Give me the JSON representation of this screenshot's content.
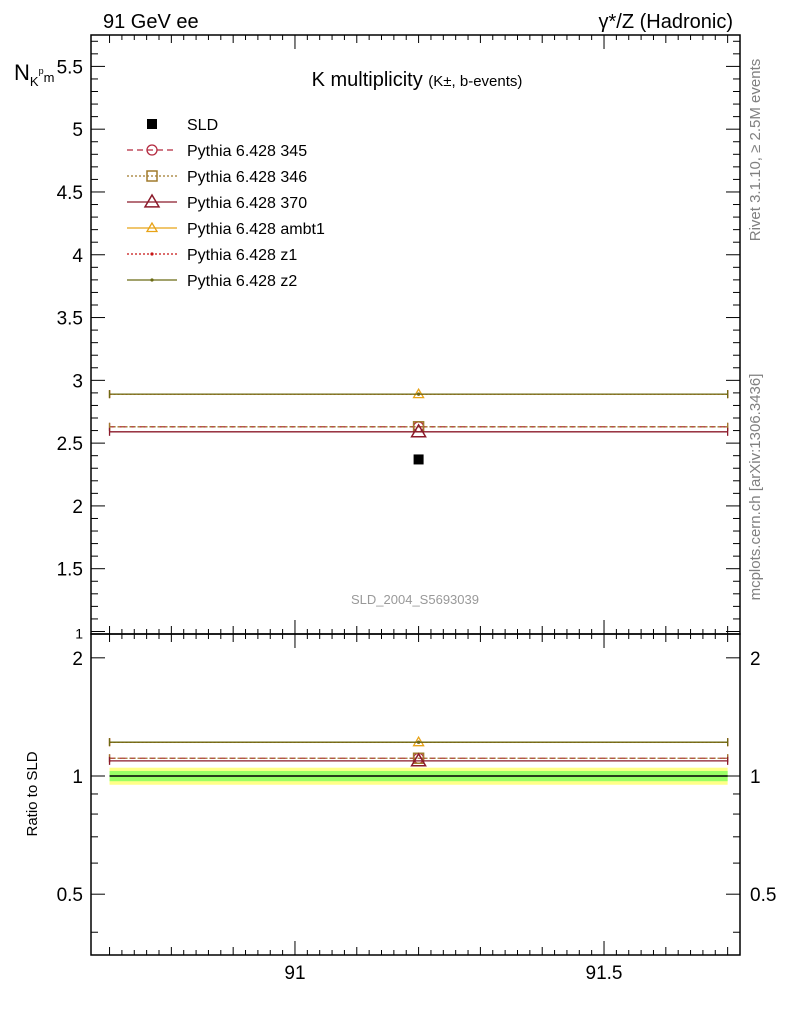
{
  "header": {
    "left": "91 GeV ee",
    "right": "γ*/Z (Hadronic)"
  },
  "side": {
    "rivet": "Rivet 3.1.10, ≥ 2.5M events",
    "mcplots": "mcplots.cern.ch [arXiv:1306.3436]"
  },
  "chart_data": {
    "type": "scatter",
    "title_main": "K multiplicity",
    "title_sub": "(K±, b-events)",
    "ylabel_main": "N",
    "ylabel_sub_1": "K",
    "ylabel_sub_2": "p",
    "ylabel_sub_3": "m",
    "ylabel_ratio": "Ratio to SLD",
    "watermark": "SLD_2004_S5693039",
    "xlim": [
      90.67,
      91.72
    ],
    "bin": [
      90.7,
      91.7
    ],
    "xcenter": 91.2,
    "xticks": [
      {
        "value": 91,
        "label": "91"
      },
      {
        "value": 91.5,
        "label": "91.5"
      }
    ],
    "ylim_main": [
      0.98,
      5.75
    ],
    "yticks_main": [
      {
        "value": 1,
        "label": "1"
      },
      {
        "value": 1.5,
        "label": "1.5"
      },
      {
        "value": 2,
        "label": "2"
      },
      {
        "value": 2.5,
        "label": "2.5"
      },
      {
        "value": 3,
        "label": "3"
      },
      {
        "value": 3.5,
        "label": "3.5"
      },
      {
        "value": 4,
        "label": "4"
      },
      {
        "value": 4.5,
        "label": "4.5"
      },
      {
        "value": 5,
        "label": "5"
      },
      {
        "value": 5.5,
        "label": "5.5"
      }
    ],
    "ylim_ratio": [
      0.35,
      2.3
    ],
    "yticks_ratio": [
      {
        "value": 0.5,
        "label": "0.5"
      },
      {
        "value": 1,
        "label": "1"
      },
      {
        "value": 2,
        "label": "2"
      }
    ],
    "data": {
      "name": "SLD",
      "value": 2.37,
      "band_inner": 0.03,
      "band_outer": 0.05
    },
    "series": [
      {
        "name": "Pythia 6.428 345",
        "value": 2.63,
        "color": "#b3293f",
        "dash": "6,4",
        "marker": "circle"
      },
      {
        "name": "Pythia 6.428 346",
        "value": 2.63,
        "color": "#a07a2c",
        "dash": "2,2",
        "marker": "square"
      },
      {
        "name": "Pythia 6.428 370",
        "value": 2.59,
        "color": "#8b1a2a",
        "dash": "",
        "marker": "triangle"
      },
      {
        "name": "Pythia 6.428 ambt1",
        "value": 2.89,
        "color": "#e8a317",
        "dash": "",
        "marker": "triangle-small"
      },
      {
        "name": "Pythia 6.428 z1",
        "value": 2.89,
        "color": "#c81414",
        "dash": "2,2",
        "marker": "dot"
      },
      {
        "name": "Pythia 6.428 z2",
        "value": 2.89,
        "color": "#6b6b14",
        "dash": "",
        "marker": "dot"
      }
    ],
    "colors": {
      "band_inner": "#99ff66",
      "band_outer": "#ffff88"
    }
  }
}
